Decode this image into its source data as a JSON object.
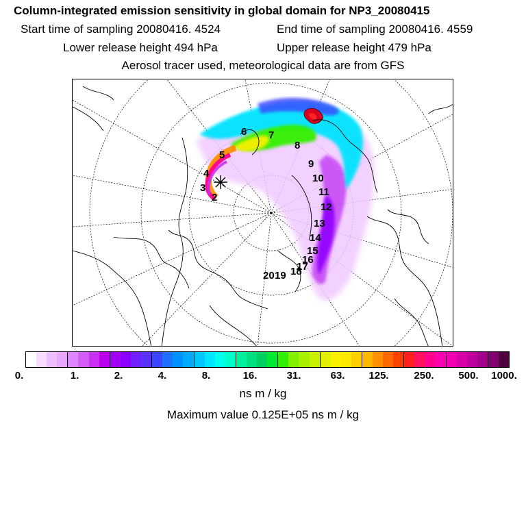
{
  "header": {
    "title": "Column-integrated emission sensitivity in global domain for NP3_20080415",
    "start_time": "Start time of sampling 20080416.  4524",
    "end_time": "End time of sampling 20080416.  4559",
    "lower_release": "Lower release height  494 hPa",
    "upper_release": "Upper release height  479 hPa",
    "tracer_note": "Aerosol tracer used, meteorological data are from GFS"
  },
  "map": {
    "trajectory_labels": [
      "2",
      "3",
      "4",
      "5",
      "6",
      "7",
      "8",
      "9",
      "10",
      "11",
      "12",
      "13",
      "14",
      "15",
      "16",
      "17",
      "18",
      "19",
      "20"
    ]
  },
  "colorbar": {
    "tick_labels": [
      "0.",
      "1.",
      "2.",
      "4.",
      "8.",
      "16.",
      "31.",
      "63.",
      "125.",
      "250.",
      "500.",
      "1000."
    ],
    "colors": [
      "#ffffff",
      "#f7dcff",
      "#eebfff",
      "#e8a6ff",
      "#de86ff",
      "#d25cf5",
      "#c832f0",
      "#bb00f0",
      "#a000f5",
      "#8a00ff",
      "#7020ff",
      "#5a32ff",
      "#3a45ff",
      "#2070ff",
      "#0090ff",
      "#00aaff",
      "#00c8ff",
      "#00e4ff",
      "#00ffee",
      "#00ffc8",
      "#00f0a0",
      "#00e080",
      "#00d060",
      "#00e830",
      "#30f000",
      "#80f000",
      "#a8f000",
      "#c8f000",
      "#e0f000",
      "#f8f000",
      "#ffe800",
      "#ffd000",
      "#ffb800",
      "#ff9000",
      "#ff6a00",
      "#ff4000",
      "#ff2020",
      "#ff1060",
      "#ff0090",
      "#ff00b0",
      "#f000b0",
      "#d800a8",
      "#c0009c",
      "#a0008c",
      "#800070",
      "#500040"
    ],
    "unit": "ns m / kg",
    "max_value_text": "Maximum value  0.125E+05 ns m / kg"
  }
}
